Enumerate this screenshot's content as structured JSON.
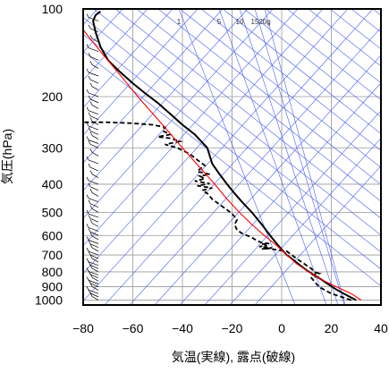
{
  "chart_data": {
    "type": "line",
    "title": "",
    "xlabel": "気温(実線), 露点(破線)",
    "ylabel": "気圧(hPa)",
    "xlim": [
      -80,
      40
    ],
    "ylim": [
      1040,
      100
    ],
    "y_scale": "log",
    "x_ticks": [
      "−80",
      "−60",
      "−40",
      "−20",
      "0",
      "20",
      "40"
    ],
    "x_tick_values": [
      -80,
      -60,
      -40,
      -20,
      0,
      20,
      40
    ],
    "y_ticks": [
      "100",
      "200",
      "300",
      "400",
      "500",
      "600",
      "700",
      "800",
      "900",
      "1000"
    ],
    "y_tick_values": [
      100,
      200,
      300,
      400,
      500,
      600,
      700,
      800,
      900,
      1000
    ],
    "mixing_ratio_labels": [
      "1",
      "5",
      "10",
      "15",
      "20g"
    ],
    "grid": true,
    "legend": "none",
    "series": [
      {
        "style": "solid",
        "color": "#000000",
        "points": [
          [
            30,
            1000
          ],
          [
            28,
            980
          ],
          [
            25,
            950
          ],
          [
            22,
            920
          ],
          [
            19,
            885
          ],
          [
            16,
            850
          ],
          [
            13,
            820
          ],
          [
            10,
            790
          ],
          [
            7,
            755
          ],
          [
            4,
            720
          ],
          [
            2,
            700
          ],
          [
            0,
            670
          ],
          [
            -2,
            640
          ],
          [
            -4,
            610
          ],
          [
            -6,
            580
          ],
          [
            -8,
            550
          ],
          [
            -12,
            500
          ],
          [
            -16,
            460
          ],
          [
            -19,
            430
          ],
          [
            -22,
            400
          ],
          [
            -25,
            370
          ],
          [
            -28,
            340
          ],
          [
            -30,
            300
          ],
          [
            -35,
            270
          ],
          [
            -40,
            250
          ],
          [
            -46,
            225
          ],
          [
            -50,
            210
          ],
          [
            -55,
            195
          ],
          [
            -60,
            180
          ],
          [
            -65,
            165
          ],
          [
            -70,
            150
          ],
          [
            -73,
            135
          ],
          [
            -75,
            120
          ],
          [
            -76,
            110
          ],
          [
            -75,
            105
          ],
          [
            -73,
            102
          ]
        ]
      },
      {
        "style": "dashed",
        "color": "#000000",
        "points": [
          [
            28,
            1000
          ],
          [
            24,
            975
          ],
          [
            20,
            950
          ],
          [
            17,
            920
          ],
          [
            15,
            900
          ],
          [
            14,
            880
          ],
          [
            13,
            860
          ],
          [
            12,
            840
          ],
          [
            14,
            830
          ],
          [
            12,
            820
          ],
          [
            15,
            810
          ],
          [
            13,
            800
          ],
          [
            12,
            780
          ],
          [
            10,
            760
          ],
          [
            7,
            730
          ],
          [
            4,
            700
          ],
          [
            2,
            680
          ],
          [
            -3,
            670
          ],
          [
            -5,
            665
          ],
          [
            -8,
            668
          ],
          [
            -4,
            662
          ],
          [
            -9,
            655
          ],
          [
            -6,
            650
          ],
          [
            -8,
            643
          ],
          [
            -5,
            640
          ],
          [
            -8,
            635
          ],
          [
            -10,
            625
          ],
          [
            -12,
            610
          ],
          [
            -16,
            590
          ],
          [
            -18,
            575
          ],
          [
            -19,
            550
          ],
          [
            -18,
            530
          ],
          [
            -20,
            505
          ],
          [
            -22,
            490
          ],
          [
            -25,
            470
          ],
          [
            -28,
            450
          ],
          [
            -30,
            430
          ],
          [
            -32,
            420
          ],
          [
            -28,
            412
          ],
          [
            -34,
            405
          ],
          [
            -29,
            398
          ],
          [
            -35,
            390
          ],
          [
            -31,
            383
          ],
          [
            -33,
            375
          ],
          [
            -29,
            370
          ],
          [
            -34,
            362
          ],
          [
            -33,
            355
          ],
          [
            -31,
            345
          ],
          [
            -34,
            330
          ],
          [
            -37,
            315
          ],
          [
            -42,
            300
          ],
          [
            -47,
            292
          ],
          [
            -41,
            285
          ],
          [
            -45,
            278
          ],
          [
            -50,
            275
          ],
          [
            -45,
            270
          ],
          [
            -48,
            262
          ],
          [
            -47,
            255
          ],
          [
            -52,
            250
          ],
          [
            -60,
            247
          ],
          [
            -70,
            245
          ],
          [
            -80,
            245
          ]
        ]
      },
      {
        "style": "solid",
        "color": "#ff0000",
        "points": [
          [
            32,
            1000
          ],
          [
            28,
            950
          ],
          [
            22,
            900
          ],
          [
            16,
            850
          ],
          [
            11,
            800
          ],
          [
            6,
            750
          ],
          [
            2,
            700
          ],
          [
            -2,
            650
          ],
          [
            -7,
            600
          ],
          [
            -12,
            550
          ],
          [
            -17,
            500
          ],
          [
            -22,
            450
          ],
          [
            -27,
            400
          ],
          [
            -33,
            350
          ],
          [
            -40,
            300
          ],
          [
            -48,
            250
          ],
          [
            -58,
            200
          ],
          [
            -66,
            165
          ],
          [
            -73,
            140
          ],
          [
            -80,
            118
          ]
        ]
      }
    ]
  }
}
